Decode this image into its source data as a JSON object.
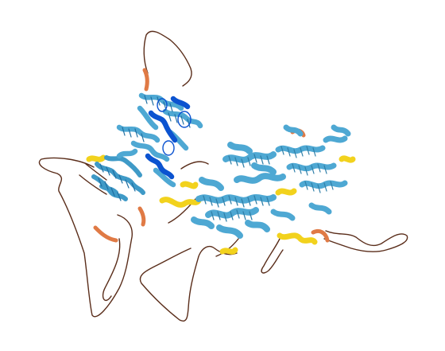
{
  "figure": {
    "kind": "predicted protein structure cartoon",
    "confidence_colors": {
      "very_high": "#0b53d0",
      "confident": "#4ea8d3",
      "low": "#f2d21d",
      "very_low": "#e07a45",
      "coil": "#5a2d1a"
    }
  }
}
